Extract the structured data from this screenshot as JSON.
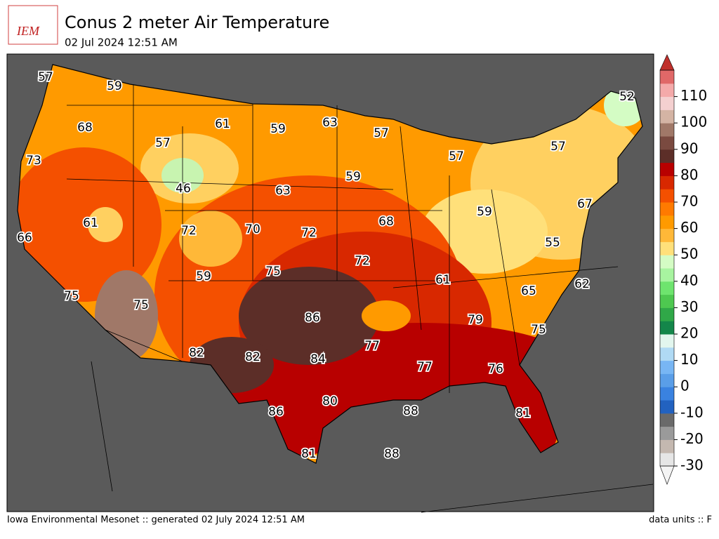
{
  "header": {
    "logo_text": "IEM",
    "title": "Conus 2 meter Air Temperature",
    "subtitle": "02 Jul 2024 12:51 AM"
  },
  "map": {
    "labels": [
      57,
      59,
      68,
      61,
      59,
      63,
      57,
      52,
      73,
      57,
      57,
      57,
      46,
      63,
      59,
      61,
      72,
      70,
      72,
      68,
      66,
      59,
      67,
      55,
      75,
      72,
      59,
      61,
      65,
      62,
      75,
      75,
      86,
      79,
      75,
      77,
      82,
      82,
      84,
      77,
      76,
      80,
      86,
      88,
      81,
      81,
      88
    ]
  },
  "colorbar": {
    "range": [
      -30,
      120
    ],
    "ticks": [
      -30,
      -20,
      -10,
      0,
      10,
      20,
      30,
      40,
      50,
      60,
      70,
      80,
      90,
      100,
      110
    ],
    "colors": [
      "#e6e6e6",
      "#c4b8b0",
      "#9a9a9a",
      "#6a6a6a",
      "#2262c0",
      "#3a82e0",
      "#5a9ee8",
      "#78b6f4",
      "#b0daf4",
      "#e2f6ee",
      "#14864a",
      "#30a848",
      "#4ec850",
      "#6ee46e",
      "#a8f4a0",
      "#d4fcc4",
      "#ffe07a",
      "#ffb838",
      "#ff9a00",
      "#ff7a00",
      "#f45000",
      "#d82800",
      "#b80000",
      "#5c2e28",
      "#7a4a40",
      "#a07868",
      "#d4b4a4",
      "#f4d0d0",
      "#f4aaaa",
      "#e06868"
    ],
    "top_color": "#c0302c",
    "bottom_color": "#f4f4f4"
  },
  "footer": {
    "left": "Iowa Environmental Mesonet :: generated 02 July 2024 12:51 AM",
    "right": "data units :: F"
  }
}
